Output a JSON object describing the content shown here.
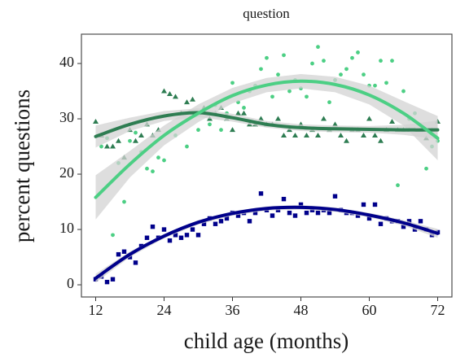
{
  "chart_data": {
    "type": "scatter",
    "title": "question",
    "x_label": "child age (months)",
    "y_label": "percent questions",
    "xlim": [
      9.5,
      74.5
    ],
    "ylim": [
      -2.2,
      45.3
    ],
    "xticks": [
      12,
      24,
      36,
      48,
      60,
      72
    ],
    "yticks": [
      0,
      10,
      20,
      30,
      40
    ],
    "band_color": "#d3d3d3",
    "series": [
      {
        "color": "#2e7d52",
        "marker": "triangle",
        "x": [
          12,
          13,
          14,
          15,
          16,
          17,
          18,
          19,
          20,
          21,
          22,
          23,
          24,
          25,
          26,
          27,
          28,
          29,
          30,
          31,
          32,
          33,
          34,
          35,
          36,
          37,
          38,
          39,
          40,
          41,
          42,
          43,
          44,
          45,
          46,
          47,
          48,
          49,
          50,
          51,
          52,
          53,
          54,
          55,
          56,
          57,
          58,
          59,
          60,
          61,
          62,
          63,
          64,
          65,
          66,
          67,
          68,
          69,
          70,
          71,
          72
        ],
        "values": [
          29.5,
          27,
          25,
          25,
          26,
          23,
          28,
          26,
          27,
          29,
          27,
          28,
          35,
          34.5,
          34,
          31,
          33,
          33.5,
          31,
          32,
          30,
          31,
          32,
          30,
          28,
          31,
          31,
          29,
          29,
          30,
          29,
          29,
          30,
          27,
          28,
          27,
          29,
          27,
          28,
          27,
          30,
          28,
          29,
          27,
          26,
          28,
          28,
          27,
          30,
          27,
          26,
          28,
          29.5,
          28,
          28,
          28,
          28,
          28,
          26.5,
          28,
          29.5
        ],
        "fit_x": [
          12,
          18,
          24,
          30,
          36,
          42,
          48,
          54,
          60,
          66,
          72
        ],
        "fit": [
          26.8,
          29,
          30.5,
          31.1,
          30.2,
          29,
          28.4,
          28.2,
          28.1,
          28,
          28
        ],
        "fit_lower": [
          24.8,
          27.8,
          29.6,
          30.3,
          29.5,
          28.4,
          27.8,
          27.6,
          27.5,
          27.1,
          26.3
        ],
        "fit_upper": [
          28.8,
          30.2,
          31.4,
          31.9,
          30.9,
          29.6,
          29,
          28.8,
          28.7,
          28.9,
          29.7
        ]
      },
      {
        "color": "#4ccf84",
        "marker": "circle",
        "x": [
          13,
          14,
          15,
          16,
          17,
          18,
          19,
          20,
          21,
          22,
          23,
          24,
          26,
          28,
          30,
          32,
          33,
          34,
          35,
          36,
          37,
          38,
          39,
          40,
          41,
          42,
          43,
          44,
          45,
          46,
          47,
          48,
          49,
          50,
          51,
          52,
          53,
          54,
          55,
          56,
          57,
          58,
          59,
          60,
          61,
          62,
          63,
          64,
          65,
          66,
          67,
          68,
          69,
          70,
          71,
          72
        ],
        "values": [
          25,
          26.5,
          9,
          22,
          15,
          26,
          27.5,
          24,
          21,
          20.5,
          23,
          22.5,
          27,
          25,
          28,
          29,
          32.5,
          28,
          31,
          36.5,
          33,
          32,
          35,
          36,
          39,
          41,
          34,
          38,
          41.5,
          35,
          37,
          35.5,
          34,
          40,
          43,
          40.5,
          33,
          37,
          38,
          39,
          41,
          42,
          38,
          36,
          36,
          40.5,
          36.5,
          40.5,
          18,
          35,
          30,
          31,
          28,
          21,
          25,
          26
        ],
        "fit_x": [
          12,
          18,
          24,
          30,
          36,
          42,
          48,
          54,
          60,
          66,
          72
        ],
        "fit": [
          15.8,
          21.8,
          27,
          31,
          34.2,
          36.1,
          36.8,
          36.2,
          34.3,
          31,
          26.5
        ],
        "fit_lower": [
          11.8,
          19.4,
          25.2,
          29.4,
          32.8,
          34.8,
          35.5,
          34.8,
          32.6,
          28.8,
          22.5
        ],
        "fit_upper": [
          19.8,
          24.2,
          28.8,
          32.6,
          35.6,
          37.4,
          38.1,
          37.6,
          36,
          33.2,
          30.5
        ]
      },
      {
        "color": "#00008b",
        "marker": "square",
        "x": [
          12,
          13,
          14,
          15,
          16,
          17,
          18,
          19,
          20,
          21,
          22,
          23,
          24,
          25,
          26,
          27,
          28,
          29,
          30,
          31,
          32,
          33,
          34,
          35,
          36,
          37,
          38,
          39,
          40,
          41,
          42,
          43,
          44,
          45,
          46,
          47,
          48,
          49,
          50,
          51,
          52,
          53,
          54,
          55,
          56,
          57,
          58,
          59,
          60,
          61,
          62,
          63,
          64,
          65,
          66,
          67,
          68,
          69,
          70,
          71,
          72
        ],
        "values": [
          1,
          1.5,
          0.5,
          1,
          5.5,
          6,
          5,
          4,
          7,
          8.5,
          10.5,
          8.5,
          10,
          8,
          9,
          8.5,
          9,
          10,
          9,
          11,
          12,
          11,
          11.5,
          12,
          13,
          12.5,
          13,
          11.5,
          13,
          16.5,
          13.5,
          12.5,
          13.5,
          15.5,
          13,
          12.5,
          14.5,
          13,
          13.5,
          13,
          13.5,
          13,
          16,
          13.5,
          13,
          13,
          12.5,
          14.5,
          12,
          14.5,
          11,
          12,
          11.5,
          11.5,
          10.5,
          11.5,
          10,
          11.5,
          10,
          9,
          9.5
        ],
        "fit_x": [
          12,
          18,
          24,
          30,
          36,
          42,
          48,
          54,
          60,
          66,
          72
        ],
        "fit": [
          1.2,
          5.5,
          8.8,
          11.3,
          12.9,
          13.8,
          14,
          13.6,
          12.6,
          11.2,
          9.3
        ],
        "fit_lower": [
          0.4,
          5,
          8.4,
          10.9,
          12.5,
          13.4,
          13.6,
          13.2,
          12.2,
          10.7,
          8.5
        ],
        "fit_upper": [
          2,
          6,
          9.2,
          11.7,
          13.3,
          14.2,
          14.4,
          14,
          13,
          11.7,
          10.1
        ]
      }
    ]
  }
}
